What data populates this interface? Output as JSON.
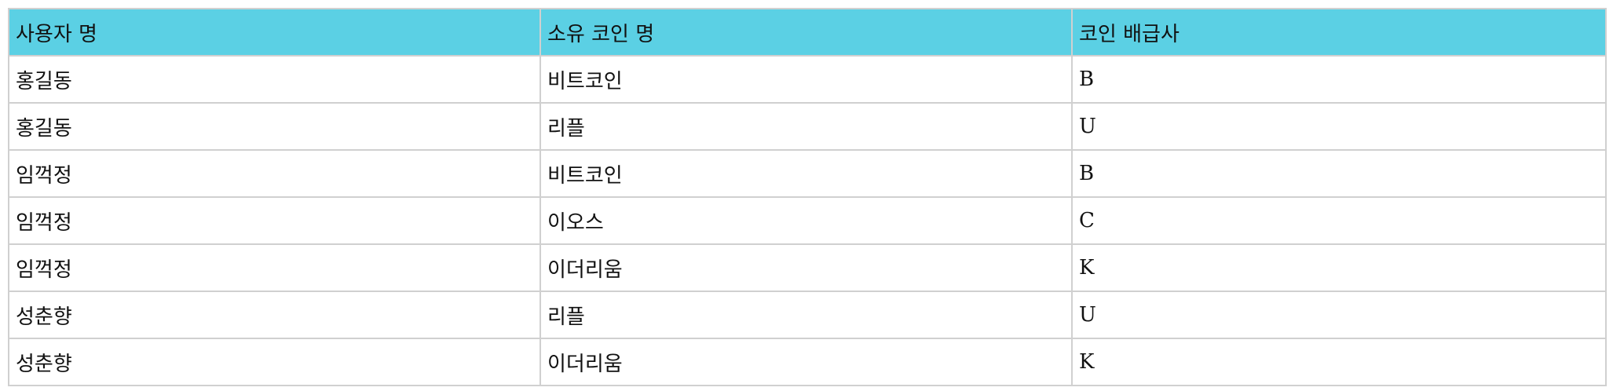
{
  "table": {
    "headers": [
      "사용자 명",
      "소유 코인 명",
      "코인 배급사"
    ],
    "rows": [
      [
        "홍길동",
        "비트코인",
        "B"
      ],
      [
        "홍길동",
        "리플",
        "U"
      ],
      [
        "임꺽정",
        "비트코인",
        "B"
      ],
      [
        "임꺽정",
        "이오스",
        "C"
      ],
      [
        "임꺽정",
        "이더리움",
        "K"
      ],
      [
        "성춘향",
        "리플",
        "U"
      ],
      [
        "성춘향",
        "이더리움",
        "K"
      ]
    ]
  },
  "colors": {
    "header_background": "#5bd0e4",
    "border": "#d0d0d0"
  }
}
